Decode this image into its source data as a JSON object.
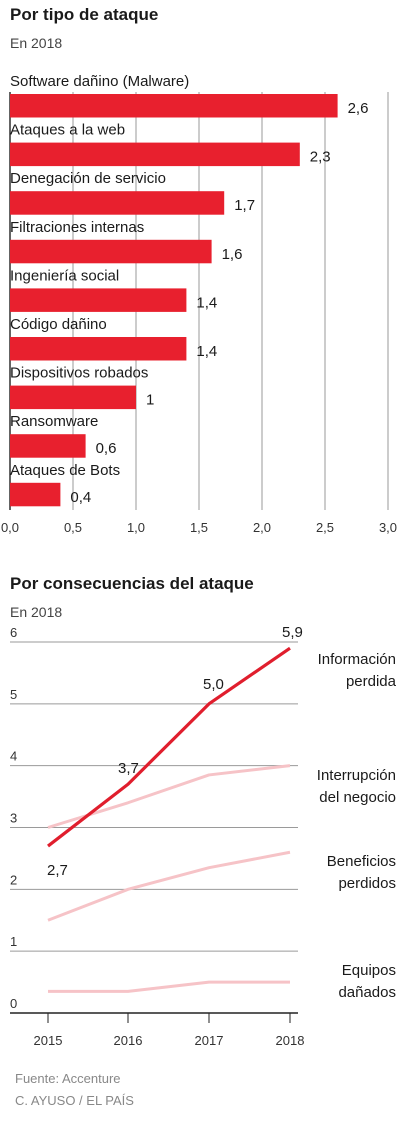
{
  "chart_data": [
    {
      "type": "bar",
      "title": "Por tipo de ataque",
      "subtitle": "En 2018",
      "categories": [
        "Software dañino (Malware)",
        "Ataques a la web",
        "Denegación de servicio",
        "Filtraciones internas",
        "Ingeniería social",
        "Código dañino",
        "Dispositivos robados",
        "Ransomware",
        "Ataques de Bots"
      ],
      "values": [
        2.6,
        2.3,
        1.7,
        1.6,
        1.4,
        1.4,
        1,
        0.6,
        0.4
      ],
      "value_labels": [
        "2,6",
        "2,3",
        "1,7",
        "1,6",
        "1,4",
        "1,4",
        "1",
        "0,6",
        "0,4"
      ],
      "xlim": [
        0,
        3.0
      ],
      "xticks": [
        0,
        0.5,
        1.0,
        1.5,
        2.0,
        2.5,
        3.0
      ],
      "xtick_labels": [
        "0,0",
        "0,5",
        "1,0",
        "1,5",
        "2,0",
        "2,5",
        "3,0"
      ],
      "grid": true,
      "bar_color": "#e8202e"
    },
    {
      "type": "line",
      "title": "Por consecuencias del ataque",
      "subtitle": "En 2018",
      "x": [
        "2015",
        "2016",
        "2017",
        "2018"
      ],
      "ylim": [
        0,
        6
      ],
      "yticks": [
        "0",
        "1",
        "2",
        "3",
        "4",
        "5",
        "6"
      ],
      "grid": true,
      "series": [
        {
          "name": "Información perdida",
          "label_lines": [
            "Información",
            "perdida"
          ],
          "values": [
            2.7,
            3.7,
            5.0,
            5.9
          ],
          "point_labels": [
            "2,7",
            "3,7",
            "5,0",
            "5,9"
          ],
          "color": "#e01e2d",
          "highlight": true
        },
        {
          "name": "Interrupción del negocio",
          "label_lines": [
            "Interrupción",
            "del negocio"
          ],
          "values": [
            3.0,
            3.4,
            3.85,
            4.0
          ],
          "color": "#f6c3c7"
        },
        {
          "name": "Beneficios perdidos",
          "label_lines": [
            "Beneficios",
            "perdidos"
          ],
          "values": [
            1.5,
            2.0,
            2.35,
            2.6
          ],
          "color": "#f6c3c7"
        },
        {
          "name": "Equipos dañados",
          "label_lines": [
            "Equipos",
            "dañados"
          ],
          "values": [
            0.35,
            0.35,
            0.5,
            0.5
          ],
          "color": "#f6c3c7"
        }
      ]
    }
  ],
  "footer": {
    "source": "Fuente: Accenture",
    "credit": "C. AYUSO / EL PAÍS"
  }
}
